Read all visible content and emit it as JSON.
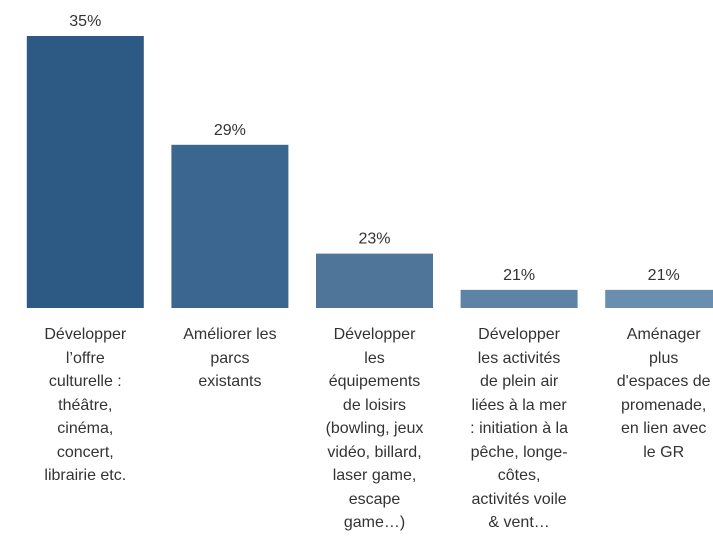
{
  "chart_data": {
    "type": "bar",
    "categories": [
      "Développer\nl’offre\nculturelle :\nthéâtre,\ncinéma,\nconcert,\nlibrairie etc.",
      "Améliorer les\nparcs\nexistants",
      "Développer\nles\néquipements\nde loisirs\n(bowling, jeux\nvidéo, billard,\nlaser game,\nescape\ngame…)",
      "Développer\nles activités\nde plein air\nliées à la mer\n: initiation à la\npêche, longe-\ncôtes,\nactivités voile\n& vent…",
      "Aménager\nplus\nd'espaces de\npromenade,\nen lien avec\nle GR"
    ],
    "values": [
      35,
      29,
      23,
      21,
      21
    ],
    "value_labels": [
      "35%",
      "29%",
      "23%",
      "21%",
      "21%"
    ],
    "colors": [
      "#2c5a84",
      "#3a6690",
      "#4f7699",
      "#5d84a6",
      "#6a8fae"
    ],
    "ylim": [
      20,
      35
    ]
  }
}
